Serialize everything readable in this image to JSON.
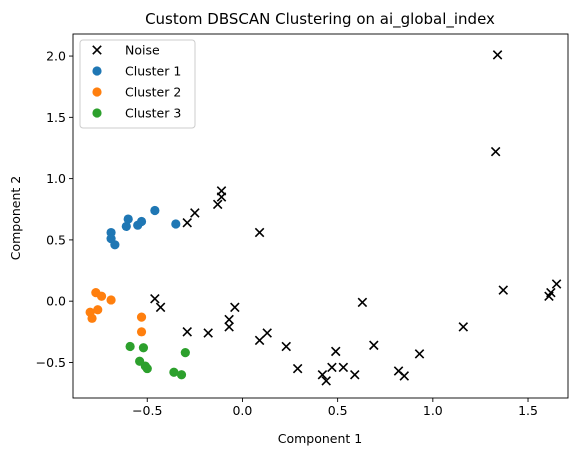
{
  "chart_data": {
    "type": "scatter",
    "title": "Custom DBSCAN Clustering on ai_global_index",
    "xlabel": "Component 1",
    "ylabel": "Component 2",
    "xlim": [
      -0.89,
      1.71
    ],
    "ylim": [
      -0.79,
      2.18
    ],
    "xticks": [
      -0.5,
      0.0,
      0.5,
      1.0,
      1.5
    ],
    "xtick_labels": [
      "−0.5",
      "0.0",
      "0.5",
      "1.0",
      "1.5"
    ],
    "yticks": [
      -0.5,
      0.0,
      0.5,
      1.0,
      1.5,
      2.0
    ],
    "ytick_labels": [
      "−0.5",
      "0.0",
      "0.5",
      "1.0",
      "1.5",
      "2.0"
    ],
    "grid": false,
    "legend_position": "upper-left",
    "series": [
      {
        "name": "Noise",
        "marker": "x",
        "color": "#000000",
        "points": [
          [
            -0.29,
            0.64
          ],
          [
            -0.25,
            0.72
          ],
          [
            -0.13,
            0.79
          ],
          [
            -0.11,
            0.85
          ],
          [
            -0.11,
            0.9
          ],
          [
            0.09,
            0.56
          ],
          [
            -0.46,
            0.02
          ],
          [
            -0.43,
            -0.05
          ],
          [
            -0.29,
            -0.25
          ],
          [
            -0.18,
            -0.26
          ],
          [
            -0.07,
            -0.15
          ],
          [
            -0.07,
            -0.21
          ],
          [
            -0.04,
            -0.05
          ],
          [
            0.09,
            -0.32
          ],
          [
            0.13,
            -0.26
          ],
          [
            0.23,
            -0.37
          ],
          [
            0.29,
            -0.55
          ],
          [
            0.42,
            -0.6
          ],
          [
            0.44,
            -0.65
          ],
          [
            0.47,
            -0.54
          ],
          [
            0.49,
            -0.41
          ],
          [
            0.53,
            -0.54
          ],
          [
            0.59,
            -0.6
          ],
          [
            0.63,
            -0.01
          ],
          [
            0.69,
            -0.36
          ],
          [
            0.82,
            -0.57
          ],
          [
            0.85,
            -0.61
          ],
          [
            0.93,
            -0.43
          ],
          [
            1.16,
            -0.21
          ],
          [
            1.33,
            1.22
          ],
          [
            1.34,
            2.01
          ],
          [
            1.37,
            0.09
          ],
          [
            1.61,
            0.04
          ],
          [
            1.62,
            0.07
          ],
          [
            1.65,
            0.14
          ]
        ]
      },
      {
        "name": "Cluster 1",
        "marker": "circle",
        "color": "#1f77b4",
        "points": [
          [
            -0.69,
            0.56
          ],
          [
            -0.69,
            0.51
          ],
          [
            -0.67,
            0.46
          ],
          [
            -0.61,
            0.61
          ],
          [
            -0.6,
            0.67
          ],
          [
            -0.55,
            0.62
          ],
          [
            -0.53,
            0.65
          ],
          [
            -0.46,
            0.74
          ],
          [
            -0.35,
            0.63
          ]
        ]
      },
      {
        "name": "Cluster 2",
        "marker": "circle",
        "color": "#ff7f0e",
        "points": [
          [
            -0.8,
            -0.09
          ],
          [
            -0.79,
            -0.14
          ],
          [
            -0.77,
            0.07
          ],
          [
            -0.76,
            -0.07
          ],
          [
            -0.74,
            0.04
          ],
          [
            -0.69,
            0.01
          ],
          [
            -0.53,
            -0.13
          ],
          [
            -0.53,
            -0.25
          ]
        ]
      },
      {
        "name": "Cluster 3",
        "marker": "circle",
        "color": "#2ca02c",
        "points": [
          [
            -0.59,
            -0.37
          ],
          [
            -0.54,
            -0.49
          ],
          [
            -0.52,
            -0.38
          ],
          [
            -0.51,
            -0.53
          ],
          [
            -0.5,
            -0.55
          ],
          [
            -0.36,
            -0.58
          ],
          [
            -0.32,
            -0.6
          ],
          [
            -0.3,
            -0.42
          ]
        ]
      }
    ]
  }
}
